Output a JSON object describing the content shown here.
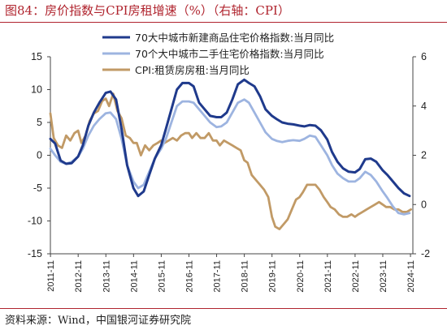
{
  "title": "图84：房价指数与CPI房租增速（%）（右轴：CPI）",
  "source": "资料来源：Wind，中国银河证券研究院",
  "chart_data": {
    "type": "line",
    "left_axis": {
      "range": [
        -15,
        15
      ],
      "ticks": [
        "15",
        "10",
        "5",
        "0",
        "-5",
        "-10",
        "-15"
      ]
    },
    "right_axis": {
      "range": [
        -2,
        6
      ],
      "ticks": [
        "6",
        "4",
        "2",
        "0",
        "-2"
      ]
    },
    "x_ticks": [
      "2011-11",
      "2012-11",
      "2013-11",
      "2014-11",
      "2015-11",
      "2016-11",
      "2017-11",
      "2018-11",
      "2019-11",
      "2020-11",
      "2021-11",
      "2022-11",
      "2023-11",
      "2024-11"
    ],
    "x_range": [
      2011.83,
      2024.92
    ],
    "legend_position": "top",
    "series": [
      {
        "name": "70大中城市新建商品住宅价格指数:当月同比",
        "axis": "left",
        "color": "#1f3a8c",
        "points": [
          [
            2011.83,
            2.5
          ],
          [
            2012.0,
            1.8
          ],
          [
            2012.2,
            -0.8
          ],
          [
            2012.4,
            -1.3
          ],
          [
            2012.6,
            -1.2
          ],
          [
            2012.83,
            -0.2
          ],
          [
            2013.0,
            1.5
          ],
          [
            2013.2,
            4.5
          ],
          [
            2013.4,
            6.5
          ],
          [
            2013.6,
            8.0
          ],
          [
            2013.83,
            9.5
          ],
          [
            2014.0,
            9.7
          ],
          [
            2014.2,
            8.5
          ],
          [
            2014.4,
            4.0
          ],
          [
            2014.6,
            -1.5
          ],
          [
            2014.83,
            -5.0
          ],
          [
            2015.0,
            -6.2
          ],
          [
            2015.2,
            -5.5
          ],
          [
            2015.4,
            -3.0
          ],
          [
            2015.6,
            -0.5
          ],
          [
            2015.83,
            1.5
          ],
          [
            2016.0,
            4.0
          ],
          [
            2016.2,
            7.0
          ],
          [
            2016.4,
            10.0
          ],
          [
            2016.6,
            11.0
          ],
          [
            2016.83,
            11.0
          ],
          [
            2017.0,
            10.5
          ],
          [
            2017.2,
            8.0
          ],
          [
            2017.4,
            7.0
          ],
          [
            2017.6,
            6.0
          ],
          [
            2017.83,
            5.8
          ],
          [
            2018.0,
            5.8
          ],
          [
            2018.2,
            6.5
          ],
          [
            2018.4,
            8.5
          ],
          [
            2018.6,
            10.8
          ],
          [
            2018.83,
            11.5
          ],
          [
            2019.0,
            11.0
          ],
          [
            2019.2,
            10.5
          ],
          [
            2019.4,
            9.0
          ],
          [
            2019.6,
            7.0
          ],
          [
            2019.83,
            6.0
          ],
          [
            2020.0,
            5.5
          ],
          [
            2020.2,
            5.0
          ],
          [
            2020.4,
            4.8
          ],
          [
            2020.6,
            4.7
          ],
          [
            2020.83,
            4.5
          ],
          [
            2021.0,
            4.4
          ],
          [
            2021.2,
            4.6
          ],
          [
            2021.4,
            4.5
          ],
          [
            2021.6,
            3.8
          ],
          [
            2021.83,
            2.4
          ],
          [
            2022.0,
            0.5
          ],
          [
            2022.2,
            -1.0
          ],
          [
            2022.4,
            -2.0
          ],
          [
            2022.6,
            -2.5
          ],
          [
            2022.83,
            -2.6
          ],
          [
            2023.0,
            -2.1
          ],
          [
            2023.2,
            -0.6
          ],
          [
            2023.4,
            -0.5
          ],
          [
            2023.6,
            -1.0
          ],
          [
            2023.83,
            -2.3
          ],
          [
            2024.0,
            -3.0
          ],
          [
            2024.2,
            -4.0
          ],
          [
            2024.4,
            -5.0
          ],
          [
            2024.6,
            -5.8
          ],
          [
            2024.8,
            -6.2
          ]
        ]
      },
      {
        "name": "70个大中城市二手住宅价格指数:当月同比",
        "axis": "left",
        "color": "#9db4e0",
        "points": [
          [
            2011.83,
            1.0
          ],
          [
            2012.0,
            0.0
          ],
          [
            2012.2,
            -1.0
          ],
          [
            2012.4,
            -1.3
          ],
          [
            2012.6,
            -1.0
          ],
          [
            2012.83,
            -0.2
          ],
          [
            2013.0,
            1.0
          ],
          [
            2013.2,
            3.0
          ],
          [
            2013.4,
            4.5
          ],
          [
            2013.6,
            5.5
          ],
          [
            2013.83,
            6.4
          ],
          [
            2014.0,
            6.5
          ],
          [
            2014.2,
            5.5
          ],
          [
            2014.4,
            2.5
          ],
          [
            2014.6,
            -1.5
          ],
          [
            2014.83,
            -4.0
          ],
          [
            2015.0,
            -5.0
          ],
          [
            2015.2,
            -4.5
          ],
          [
            2015.4,
            -2.5
          ],
          [
            2015.6,
            -0.5
          ],
          [
            2015.83,
            1.0
          ],
          [
            2016.0,
            2.5
          ],
          [
            2016.2,
            5.0
          ],
          [
            2016.4,
            7.5
          ],
          [
            2016.6,
            8.2
          ],
          [
            2016.83,
            8.2
          ],
          [
            2017.0,
            8.0
          ],
          [
            2017.2,
            7.0
          ],
          [
            2017.4,
            6.0
          ],
          [
            2017.6,
            5.0
          ],
          [
            2017.83,
            4.3
          ],
          [
            2018.0,
            4.4
          ],
          [
            2018.2,
            5.0
          ],
          [
            2018.4,
            6.5
          ],
          [
            2018.6,
            8.0
          ],
          [
            2018.83,
            8.5
          ],
          [
            2019.0,
            8.0
          ],
          [
            2019.2,
            6.5
          ],
          [
            2019.4,
            5.0
          ],
          [
            2019.6,
            3.5
          ],
          [
            2019.83,
            2.5
          ],
          [
            2020.0,
            2.2
          ],
          [
            2020.2,
            2.0
          ],
          [
            2020.4,
            2.2
          ],
          [
            2020.6,
            2.3
          ],
          [
            2020.83,
            2.2
          ],
          [
            2021.0,
            2.5
          ],
          [
            2021.2,
            3.0
          ],
          [
            2021.4,
            2.8
          ],
          [
            2021.6,
            1.5
          ],
          [
            2021.83,
            0.0
          ],
          [
            2022.0,
            -1.5
          ],
          [
            2022.2,
            -2.8
          ],
          [
            2022.4,
            -3.5
          ],
          [
            2022.6,
            -4.0
          ],
          [
            2022.83,
            -4.0
          ],
          [
            2023.0,
            -3.5
          ],
          [
            2023.2,
            -2.5
          ],
          [
            2023.4,
            -3.0
          ],
          [
            2023.6,
            -4.0
          ],
          [
            2023.83,
            -5.5
          ],
          [
            2024.0,
            -6.5
          ],
          [
            2024.2,
            -7.8
          ],
          [
            2024.4,
            -8.8
          ],
          [
            2024.6,
            -9.0
          ],
          [
            2024.8,
            -8.8
          ]
        ]
      },
      {
        "name": "CPI:租赁房房租:当月同比",
        "axis": "right",
        "color": "#c19a66",
        "points": [
          [
            2011.83,
            3.7
          ],
          [
            2011.95,
            2.7
          ],
          [
            2012.1,
            2.4
          ],
          [
            2012.25,
            2.3
          ],
          [
            2012.4,
            2.8
          ],
          [
            2012.55,
            2.6
          ],
          [
            2012.7,
            2.9
          ],
          [
            2012.83,
            3.0
          ],
          [
            2012.95,
            2.5
          ],
          [
            2013.1,
            2.8
          ],
          [
            2013.25,
            3.4
          ],
          [
            2013.4,
            3.7
          ],
          [
            2013.55,
            3.8
          ],
          [
            2013.7,
            4.2
          ],
          [
            2013.83,
            4.3
          ],
          [
            2013.95,
            4.0
          ],
          [
            2014.1,
            4.5
          ],
          [
            2014.25,
            3.8
          ],
          [
            2014.4,
            3.5
          ],
          [
            2014.55,
            2.8
          ],
          [
            2014.7,
            2.7
          ],
          [
            2014.83,
            2.5
          ],
          [
            2014.95,
            2.5
          ],
          [
            2015.1,
            2.0
          ],
          [
            2015.25,
            2.4
          ],
          [
            2015.4,
            2.2
          ],
          [
            2015.55,
            2.4
          ],
          [
            2015.7,
            2.5
          ],
          [
            2015.83,
            2.6
          ],
          [
            2015.95,
            2.5
          ],
          [
            2016.1,
            2.6
          ],
          [
            2016.25,
            2.7
          ],
          [
            2016.4,
            2.6
          ],
          [
            2016.55,
            2.8
          ],
          [
            2016.7,
            2.9
          ],
          [
            2016.83,
            2.9
          ],
          [
            2016.95,
            2.7
          ],
          [
            2017.1,
            2.9
          ],
          [
            2017.25,
            2.7
          ],
          [
            2017.4,
            2.7
          ],
          [
            2017.55,
            2.9
          ],
          [
            2017.7,
            2.6
          ],
          [
            2017.83,
            2.6
          ],
          [
            2017.95,
            2.4
          ],
          [
            2018.1,
            2.6
          ],
          [
            2018.25,
            2.5
          ],
          [
            2018.4,
            2.4
          ],
          [
            2018.55,
            2.3
          ],
          [
            2018.7,
            2.2
          ],
          [
            2018.83,
            1.8
          ],
          [
            2018.95,
            1.7
          ],
          [
            2019.1,
            1.2
          ],
          [
            2019.25,
            1.0
          ],
          [
            2019.4,
            0.8
          ],
          [
            2019.55,
            0.6
          ],
          [
            2019.7,
            0.3
          ],
          [
            2019.83,
            -0.5
          ],
          [
            2019.95,
            -0.9
          ],
          [
            2020.1,
            -1.0
          ],
          [
            2020.25,
            -0.8
          ],
          [
            2020.4,
            -0.6
          ],
          [
            2020.55,
            -0.2
          ],
          [
            2020.7,
            0.2
          ],
          [
            2020.83,
            0.3
          ],
          [
            2020.95,
            0.5
          ],
          [
            2021.1,
            0.8
          ],
          [
            2021.25,
            0.8
          ],
          [
            2021.4,
            0.8
          ],
          [
            2021.55,
            0.6
          ],
          [
            2021.7,
            0.3
          ],
          [
            2021.83,
            0.1
          ],
          [
            2021.95,
            -0.1
          ],
          [
            2022.1,
            -0.2
          ],
          [
            2022.25,
            -0.4
          ],
          [
            2022.4,
            -0.5
          ],
          [
            2022.55,
            -0.5
          ],
          [
            2022.7,
            -0.4
          ],
          [
            2022.83,
            -0.5
          ],
          [
            2022.95,
            -0.4
          ],
          [
            2023.1,
            -0.3
          ],
          [
            2023.25,
            -0.2
          ],
          [
            2023.4,
            -0.1
          ],
          [
            2023.55,
            0.0
          ],
          [
            2023.7,
            0.1
          ],
          [
            2023.83,
            0.0
          ],
          [
            2023.95,
            -0.1
          ],
          [
            2024.1,
            -0.1
          ],
          [
            2024.25,
            -0.2
          ],
          [
            2024.4,
            -0.2
          ],
          [
            2024.55,
            -0.3
          ],
          [
            2024.7,
            -0.3
          ],
          [
            2024.85,
            -0.2
          ]
        ]
      }
    ]
  }
}
